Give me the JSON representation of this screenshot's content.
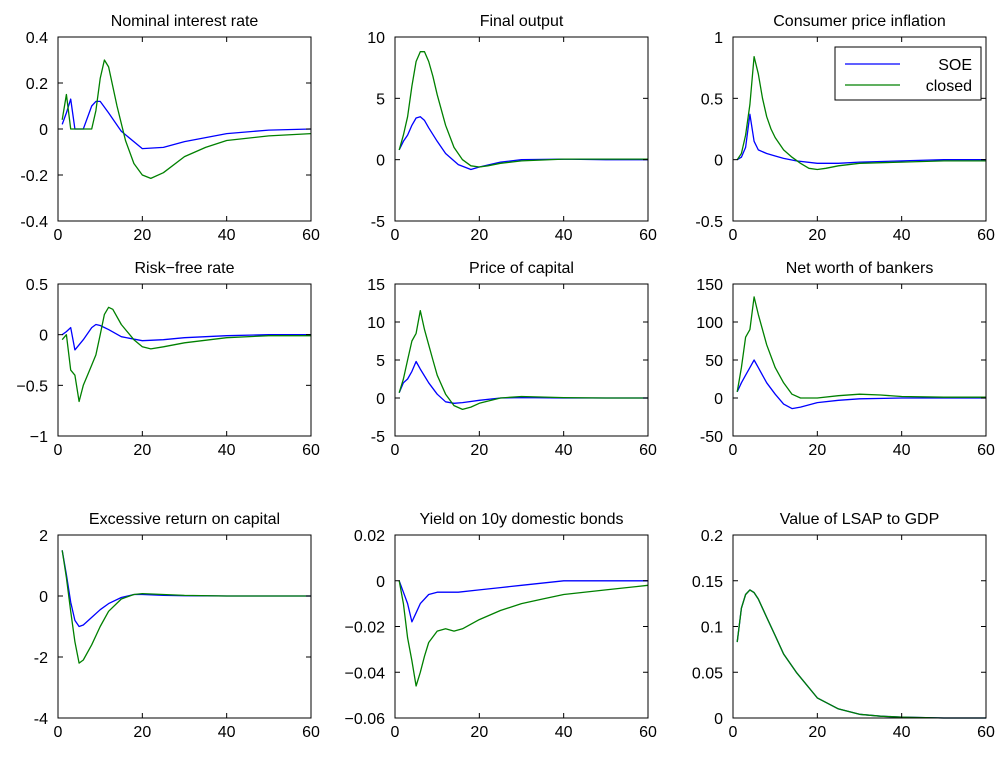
{
  "colors": {
    "soe": "#0000ff",
    "closed": "#008000"
  },
  "legend": {
    "items": [
      {
        "label": "SOE",
        "color": "#0000ff"
      },
      {
        "label": "closed",
        "color": "#008000"
      }
    ]
  },
  "chart_data": [
    {
      "type": "line",
      "title": "Nominal interest rate",
      "xlim": [
        0,
        60
      ],
      "ylim": [
        -0.4,
        0.4
      ],
      "xticks": [
        "0",
        "20",
        "40",
        "60"
      ],
      "yticks": [
        "-0.4",
        "-0.2",
        "0",
        "0.2",
        "0.4"
      ],
      "series": [
        {
          "name": "SOE",
          "x": [
            1,
            2,
            3,
            4,
            6,
            8,
            9,
            10,
            12,
            15,
            20,
            25,
            30,
            40,
            50,
            60
          ],
          "y": [
            0.02,
            0.07,
            0.13,
            0.0,
            0.0,
            0.1,
            0.12,
            0.12,
            0.07,
            -0.01,
            -0.085,
            -0.08,
            -0.055,
            -0.02,
            -0.005,
            0.0
          ]
        },
        {
          "name": "closed",
          "x": [
            1,
            2,
            3,
            4,
            5,
            8,
            9,
            10,
            11,
            12,
            14,
            16,
            18,
            20,
            22,
            25,
            30,
            35,
            40,
            50,
            60
          ],
          "y": [
            0.04,
            0.15,
            0.0,
            0.0,
            0.0,
            0.0,
            0.08,
            0.22,
            0.3,
            0.27,
            0.1,
            -0.05,
            -0.15,
            -0.2,
            -0.215,
            -0.19,
            -0.12,
            -0.08,
            -0.05,
            -0.03,
            -0.02
          ]
        }
      ]
    },
    {
      "type": "line",
      "title": "Final output",
      "xlim": [
        0,
        60
      ],
      "ylim": [
        -5,
        10
      ],
      "xticks": [
        "0",
        "20",
        "40",
        "60"
      ],
      "yticks": [
        "-5",
        "0",
        "5",
        "10"
      ],
      "series": [
        {
          "name": "SOE",
          "x": [
            1,
            2,
            3,
            4,
            5,
            6,
            7,
            8,
            10,
            12,
            15,
            18,
            20,
            25,
            30,
            40,
            50,
            60
          ],
          "y": [
            0.8,
            1.5,
            2.0,
            2.8,
            3.4,
            3.5,
            3.2,
            2.6,
            1.5,
            0.5,
            -0.4,
            -0.8,
            -0.6,
            -0.2,
            0.0,
            0.05,
            0.0,
            0.0
          ]
        },
        {
          "name": "closed",
          "x": [
            1,
            2,
            3,
            4,
            5,
            6,
            7,
            8,
            9,
            10,
            12,
            14,
            16,
            18,
            20,
            22,
            25,
            30,
            40,
            50,
            60
          ],
          "y": [
            0.8,
            2.0,
            3.5,
            6.0,
            8.0,
            8.8,
            8.8,
            8.0,
            6.8,
            5.3,
            2.8,
            1.0,
            0.0,
            -0.5,
            -0.6,
            -0.5,
            -0.3,
            -0.1,
            0.05,
            0.05,
            0.05
          ]
        }
      ]
    },
    {
      "type": "line",
      "title": "Consumer price inflation",
      "xlim": [
        0,
        60
      ],
      "ylim": [
        -0.5,
        1
      ],
      "xticks": [
        "0",
        "20",
        "40",
        "60"
      ],
      "yticks": [
        "-0.5",
        "0",
        "0.5",
        "1"
      ],
      "series": [
        {
          "name": "SOE",
          "x": [
            1,
            2,
            3,
            4,
            5,
            6,
            8,
            10,
            12,
            15,
            20,
            25,
            30,
            40,
            50,
            60
          ],
          "y": [
            0.0,
            0.02,
            0.1,
            0.37,
            0.15,
            0.08,
            0.05,
            0.03,
            0.01,
            -0.01,
            -0.03,
            -0.03,
            -0.02,
            -0.01,
            0.0,
            0.0
          ]
        },
        {
          "name": "closed",
          "x": [
            1,
            2,
            3,
            4,
            5,
            6,
            7,
            8,
            9,
            10,
            12,
            14,
            16,
            18,
            20,
            22,
            25,
            30,
            40,
            50,
            60
          ],
          "y": [
            0.0,
            0.05,
            0.2,
            0.45,
            0.84,
            0.7,
            0.5,
            0.35,
            0.25,
            0.18,
            0.08,
            0.02,
            -0.03,
            -0.07,
            -0.08,
            -0.07,
            -0.05,
            -0.03,
            -0.02,
            -0.01,
            -0.01
          ]
        }
      ]
    },
    {
      "type": "line",
      "title": "Risk−free rate",
      "xlim": [
        0,
        60
      ],
      "ylim": [
        -1,
        0.5
      ],
      "xticks": [
        "0",
        "20",
        "40",
        "60"
      ],
      "yticks": [
        "−1",
        "−0.5",
        "0",
        "0.5"
      ],
      "series": [
        {
          "name": "SOE",
          "x": [
            1,
            2,
            3,
            4,
            6,
            8,
            9,
            10,
            12,
            15,
            20,
            25,
            30,
            40,
            50,
            60
          ],
          "y": [
            0.0,
            0.03,
            0.07,
            -0.15,
            -0.05,
            0.07,
            0.1,
            0.09,
            0.05,
            -0.02,
            -0.06,
            -0.05,
            -0.03,
            -0.01,
            0.0,
            0.0
          ]
        },
        {
          "name": "closed",
          "x": [
            1,
            2,
            3,
            4,
            5,
            6,
            7,
            8,
            9,
            10,
            11,
            12,
            13,
            15,
            18,
            20,
            22,
            25,
            30,
            40,
            50,
            60
          ],
          "y": [
            -0.05,
            0.0,
            -0.35,
            -0.4,
            -0.66,
            -0.5,
            -0.4,
            -0.3,
            -0.2,
            0.0,
            0.2,
            0.27,
            0.25,
            0.1,
            -0.05,
            -0.12,
            -0.14,
            -0.12,
            -0.08,
            -0.03,
            -0.01,
            -0.01
          ]
        }
      ]
    },
    {
      "type": "line",
      "title": "Price of capital",
      "xlim": [
        0,
        60
      ],
      "ylim": [
        -5,
        15
      ],
      "xticks": [
        "0",
        "20",
        "40",
        "60"
      ],
      "yticks": [
        "-5",
        "0",
        "5",
        "10",
        "15"
      ],
      "series": [
        {
          "name": "SOE",
          "x": [
            1,
            2,
            3,
            4,
            5,
            6,
            8,
            10,
            12,
            14,
            16,
            20,
            25,
            30,
            40,
            50,
            60
          ],
          "y": [
            0.7,
            2.0,
            2.5,
            3.5,
            4.8,
            3.8,
            2.0,
            0.5,
            -0.5,
            -0.7,
            -0.6,
            -0.3,
            0.0,
            0.05,
            0.0,
            0.0,
            0.0
          ]
        },
        {
          "name": "closed",
          "x": [
            1,
            2,
            3,
            4,
            5,
            6,
            7,
            8,
            9,
            10,
            12,
            14,
            16,
            18,
            20,
            25,
            30,
            40,
            50,
            60
          ],
          "y": [
            0.7,
            2.5,
            5.0,
            7.5,
            8.5,
            11.5,
            9.0,
            7.0,
            5.0,
            3.0,
            0.5,
            -1.0,
            -1.5,
            -1.2,
            -0.7,
            0.0,
            0.2,
            0.05,
            0.0,
            0.0
          ]
        }
      ]
    },
    {
      "type": "line",
      "title": "Net worth of bankers",
      "xlim": [
        0,
        60
      ],
      "ylim": [
        -50,
        150
      ],
      "xticks": [
        "0",
        "20",
        "40",
        "60"
      ],
      "yticks": [
        "-50",
        "0",
        "50",
        "100",
        "150"
      ],
      "series": [
        {
          "name": "SOE",
          "x": [
            1,
            2,
            3,
            4,
            5,
            6,
            8,
            10,
            12,
            14,
            16,
            20,
            25,
            30,
            40,
            50,
            60
          ],
          "y": [
            8,
            20,
            30,
            40,
            50,
            40,
            20,
            5,
            -8,
            -14,
            -12,
            -6,
            -3,
            -1,
            0,
            0,
            0
          ]
        },
        {
          "name": "closed",
          "x": [
            1,
            2,
            3,
            4,
            5,
            6,
            8,
            10,
            12,
            14,
            16,
            18,
            20,
            25,
            30,
            35,
            40,
            50,
            60
          ],
          "y": [
            8,
            40,
            80,
            90,
            133,
            110,
            70,
            40,
            20,
            5,
            0,
            0,
            0,
            3,
            5,
            4,
            2,
            1,
            1
          ]
        }
      ]
    },
    {
      "type": "line",
      "title": "Excessive return on capital",
      "xlim": [
        0,
        60
      ],
      "ylim": [
        -4,
        2
      ],
      "xticks": [
        "0",
        "20",
        "40",
        "60"
      ],
      "yticks": [
        "-4",
        "-2",
        "0",
        "2"
      ],
      "series": [
        {
          "name": "SOE",
          "x": [
            1,
            2,
            3,
            4,
            5,
            6,
            8,
            10,
            12,
            15,
            18,
            20,
            25,
            30,
            40,
            50,
            60
          ],
          "y": [
            1.5,
            0.7,
            -0.2,
            -0.8,
            -1.0,
            -0.95,
            -0.7,
            -0.45,
            -0.25,
            -0.05,
            0.05,
            0.05,
            0.02,
            0.01,
            0.0,
            0.0,
            0.0
          ]
        },
        {
          "name": "closed",
          "x": [
            1,
            2,
            3,
            4,
            5,
            6,
            8,
            10,
            12,
            15,
            18,
            20,
            25,
            30,
            40,
            50,
            60
          ],
          "y": [
            1.5,
            0.6,
            -0.5,
            -1.5,
            -2.2,
            -2.1,
            -1.6,
            -1.0,
            -0.5,
            -0.1,
            0.05,
            0.08,
            0.05,
            0.02,
            0.0,
            0.0,
            0.0
          ]
        }
      ]
    },
    {
      "type": "line",
      "title": "Yield on 10y domestic bonds",
      "xlim": [
        0,
        60
      ],
      "ylim": [
        -0.06,
        0.02
      ],
      "xticks": [
        "0",
        "20",
        "40",
        "60"
      ],
      "yticks": [
        "−0.06",
        "−0.04",
        "−0.02",
        "0",
        "0.02"
      ],
      "series": [
        {
          "name": "SOE",
          "x": [
            1,
            2,
            3,
            4,
            5,
            6,
            8,
            10,
            12,
            15,
            20,
            25,
            30,
            40,
            50,
            60
          ],
          "y": [
            0.0,
            -0.005,
            -0.01,
            -0.018,
            -0.014,
            -0.01,
            -0.006,
            -0.005,
            -0.005,
            -0.005,
            -0.004,
            -0.003,
            -0.002,
            0.0,
            0.0,
            0.0
          ]
        },
        {
          "name": "closed",
          "x": [
            1,
            2,
            3,
            4,
            5,
            6,
            7,
            8,
            10,
            12,
            14,
            16,
            18,
            20,
            25,
            30,
            35,
            40,
            50,
            60
          ],
          "y": [
            0.0,
            -0.01,
            -0.025,
            -0.035,
            -0.046,
            -0.04,
            -0.033,
            -0.027,
            -0.022,
            -0.021,
            -0.022,
            -0.021,
            -0.019,
            -0.017,
            -0.013,
            -0.01,
            -0.008,
            -0.006,
            -0.004,
            -0.002
          ]
        }
      ]
    },
    {
      "type": "line",
      "title": "Value of LSAP to GDP",
      "xlim": [
        0,
        60
      ],
      "ylim": [
        0,
        0.2
      ],
      "xticks": [
        "0",
        "20",
        "40",
        "60"
      ],
      "yticks": [
        "0",
        "0.05",
        "0.1",
        "0.15",
        "0.2"
      ],
      "series": [
        {
          "name": "SOE",
          "x": [
            1,
            2,
            3,
            4,
            5,
            6,
            8,
            10,
            12,
            15,
            20,
            25,
            30,
            35,
            40,
            50,
            60
          ],
          "y": [
            0.083,
            0.12,
            0.135,
            0.14,
            0.137,
            0.13,
            0.11,
            0.09,
            0.07,
            0.05,
            0.022,
            0.01,
            0.004,
            0.002,
            0.001,
            0.0,
            0.0
          ]
        },
        {
          "name": "closed",
          "x": [
            1,
            2,
            3,
            4,
            5,
            6,
            8,
            10,
            12,
            15,
            20,
            25,
            30,
            35,
            40,
            50,
            60
          ],
          "y": [
            0.083,
            0.12,
            0.135,
            0.14,
            0.137,
            0.13,
            0.11,
            0.09,
            0.07,
            0.05,
            0.022,
            0.01,
            0.004,
            0.002,
            0.001,
            0.0,
            0.0
          ]
        }
      ]
    }
  ]
}
